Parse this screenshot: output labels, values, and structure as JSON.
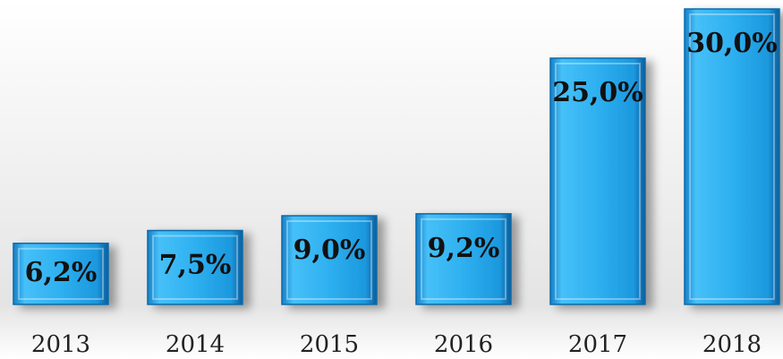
{
  "chart_data": {
    "type": "bar",
    "categories": [
      "2013",
      "2014",
      "2015",
      "2016",
      "2017",
      "2018"
    ],
    "values": [
      6.2,
      7.5,
      9.0,
      9.2,
      25.0,
      30.0
    ],
    "value_labels": [
      "6,2%",
      "7,5%",
      "9,0%",
      "9,2%",
      "25,0%",
      "30,0%"
    ],
    "color": "#29a9ec"
  }
}
